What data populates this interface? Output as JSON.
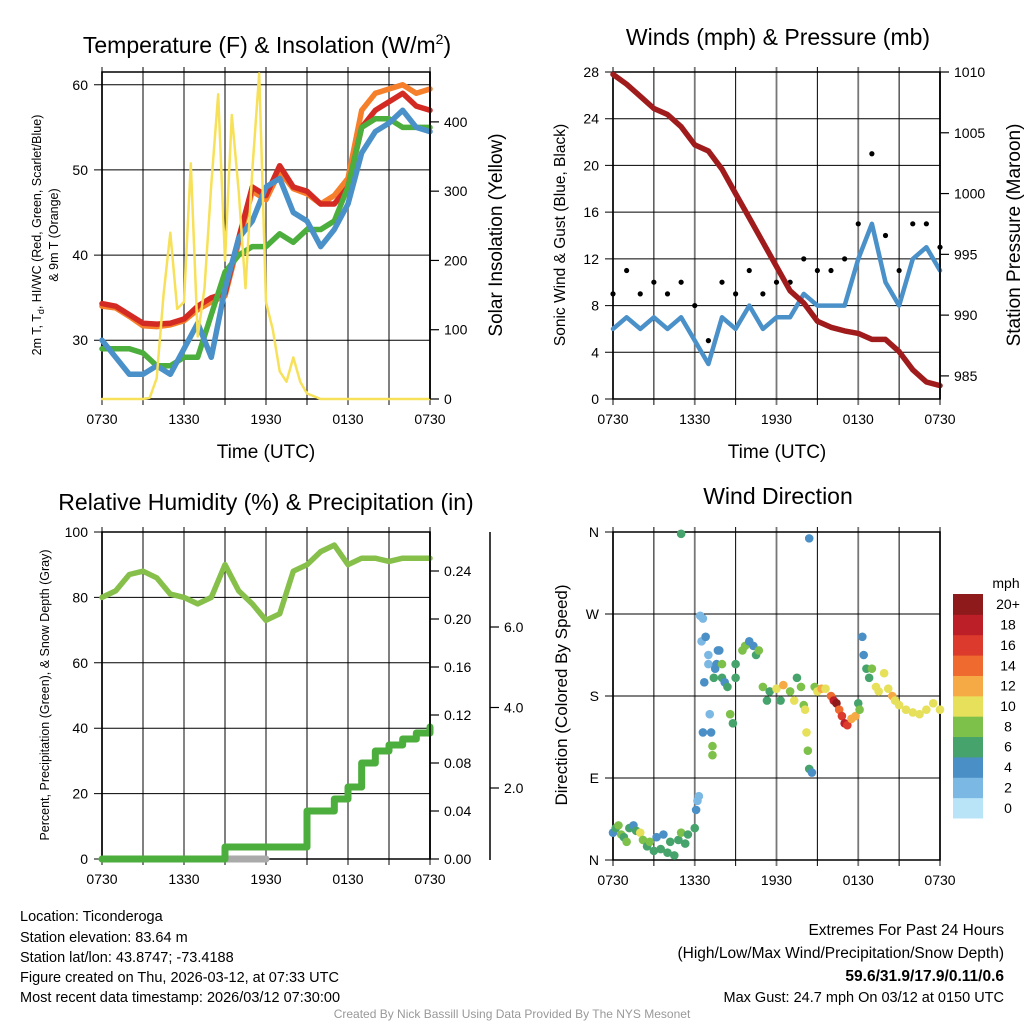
{
  "chart_data": [
    {
      "type": "line",
      "title_main": "Temperature (F) & Insolation (W/m",
      "title_sup": "2",
      "title_end": ")",
      "xlabel": "Time (UTC)",
      "ylabel_line1_a": "2m T, T",
      "ylabel_line1_sub": "d",
      "ylabel_line1_b": ", HI/WC (Red, Green, Scarlet/Blue)",
      "ylabel_line2": "& 9m T (Orange)",
      "y2label": "Solar Insolation (Yellow)",
      "xticks": [
        "0730",
        "1330",
        "1930",
        "0130",
        "0730"
      ],
      "yticks": [
        "30",
        "40",
        "50",
        "60"
      ],
      "y2ticks": [
        "0",
        "100",
        "200",
        "300",
        "400"
      ],
      "ylim": [
        23.1,
        61.5
      ],
      "y2lim": [
        0,
        472
      ],
      "x_hours": [
        0,
        1,
        2,
        3,
        4,
        5,
        6,
        7,
        8,
        9,
        10,
        11,
        12,
        13,
        14,
        15,
        16,
        17,
        18,
        19,
        20,
        21,
        22,
        23,
        24
      ],
      "series": [
        {
          "name": "9m T",
          "color": "#f57f2a",
          "values": [
            34,
            33.8,
            32.8,
            31.7,
            31.6,
            31.8,
            32.3,
            33.6,
            34.5,
            35.2,
            41.5,
            47.5,
            46.5,
            49.8,
            47.8,
            47.2,
            46,
            47,
            49,
            57,
            59,
            59.5,
            60,
            59,
            59.5
          ]
        },
        {
          "name": "2m T",
          "color": "#d42a24",
          "values": [
            34.3,
            34,
            33,
            32,
            31.9,
            32,
            32.5,
            34,
            35,
            35.5,
            42,
            48,
            47,
            50.5,
            48,
            47.5,
            46,
            46,
            48,
            55,
            57,
            58,
            59,
            57.5,
            57
          ]
        },
        {
          "name": "Td",
          "color": "#4cae3c",
          "values": [
            29,
            29,
            29,
            28.5,
            27,
            27,
            28,
            28,
            33,
            38,
            40,
            41,
            41,
            42.5,
            41.5,
            43,
            43,
            44,
            48,
            55,
            56,
            56,
            55,
            55,
            55
          ]
        },
        {
          "name": "HI/WC",
          "color": "#4a90c9",
          "values": [
            30,
            28,
            26,
            26,
            27,
            26,
            29,
            32,
            28,
            36,
            42,
            44,
            48,
            49,
            45,
            44,
            41,
            43,
            46,
            52,
            54.5,
            55.5,
            57,
            55,
            54.5
          ]
        }
      ],
      "insolation": {
        "name": "Solar Insolation",
        "color": "#f7e15a",
        "x_hours": [
          0,
          1,
          2,
          3,
          3.5,
          4,
          4.5,
          5,
          5.5,
          6,
          6.5,
          7,
          7.5,
          8,
          8.5,
          9,
          9.5,
          10,
          10.5,
          11,
          11.5,
          12,
          12.5,
          13,
          13.5,
          14,
          14.5,
          15,
          16,
          17,
          18,
          19,
          20,
          21,
          22,
          23,
          24
        ],
        "values": [
          0,
          0,
          0,
          0,
          2,
          30,
          150,
          240,
          130,
          140,
          340,
          90,
          160,
          310,
          440,
          200,
          410,
          300,
          160,
          330,
          470,
          140,
          100,
          40,
          25,
          60,
          25,
          8,
          0,
          0,
          0,
          0,
          0,
          0,
          0,
          0,
          0
        ]
      }
    },
    {
      "type": "line",
      "title": "Winds (mph) & Pressure (mb)",
      "xlabel": "Time (UTC)",
      "ylabel": "Sonic Wind & Gust (Blue, Black)",
      "y2label": "Station Pressure (Maroon)",
      "xticks": [
        "0730",
        "1330",
        "1930",
        "0130",
        "0730"
      ],
      "yticks": [
        "0",
        "4",
        "8",
        "12",
        "16",
        "20",
        "24",
        "28"
      ],
      "y2ticks": [
        "985",
        "990",
        "995",
        "1000",
        "1005",
        "1010"
      ],
      "ylim": [
        0,
        28
      ],
      "y2lim": [
        983.1,
        1010
      ],
      "x_hours": [
        0,
        1,
        2,
        3,
        4,
        5,
        6,
        7,
        8,
        9,
        10,
        11,
        12,
        13,
        14,
        15,
        16,
        17,
        18,
        19,
        20,
        21,
        22,
        23,
        24
      ],
      "series": [
        {
          "name": "Station Pressure",
          "color": "#a01c1c",
          "values": [
            1009.8,
            1009,
            1008,
            1007,
            1006.5,
            1005.5,
            1004,
            1003.5,
            1002,
            1000,
            998,
            996,
            994,
            992,
            991,
            989.5,
            989,
            988.7,
            988.5,
            988,
            988,
            987,
            985.5,
            984.5,
            984.2
          ]
        },
        {
          "name": "Sonic Wind",
          "color": "#4a90c9",
          "values": [
            6,
            7,
            6,
            7,
            6,
            7,
            5,
            3,
            7,
            6,
            8,
            6,
            7,
            7,
            9,
            8,
            8,
            8,
            12,
            15,
            10,
            8,
            12,
            13,
            11
          ]
        },
        {
          "name": "Gust",
          "color": "#000000",
          "values": [
            9,
            11,
            9,
            10,
            9,
            10,
            8,
            5,
            10,
            9,
            11,
            9,
            10,
            10,
            12,
            11,
            11,
            12,
            15,
            21,
            14,
            11,
            15,
            15,
            13
          ]
        }
      ]
    },
    {
      "type": "line",
      "title": "Relative Humidity (%) & Precipitation (in)",
      "ylabel": "Percent, Precipitation (Green), & Snow Depth (Gray)",
      "xticks": [
        "0730",
        "1330",
        "1930",
        "0130",
        "0730"
      ],
      "yticks": [
        "0",
        "20",
        "40",
        "60",
        "80",
        "100"
      ],
      "y2ticks": [
        "0.00",
        "0.04",
        "0.08",
        "0.12",
        "0.16",
        "0.20",
        "0.24"
      ],
      "y3ticks": [
        "2.0",
        "4.0",
        "6.0"
      ],
      "ylim": [
        0,
        100
      ],
      "y2lim": [
        0,
        0.2725
      ],
      "x_hours": [
        0,
        1,
        2,
        3,
        4,
        5,
        6,
        7,
        8,
        9,
        10,
        11,
        12,
        13,
        14,
        15,
        16,
        17,
        18,
        19,
        20,
        21,
        22,
        23,
        24
      ],
      "series": [
        {
          "name": "Relative Humidity",
          "color": "#86c04a",
          "values": [
            80,
            82,
            87,
            88,
            86,
            81,
            80,
            78,
            80,
            90,
            82,
            78,
            73,
            75,
            88,
            90,
            94,
            96,
            90,
            92,
            92,
            91,
            92,
            92,
            92
          ]
        },
        {
          "name": "Precipitation",
          "color": "#4cae3c",
          "values": [
            0,
            0,
            0,
            0,
            0,
            0,
            0,
            0,
            0,
            0.01,
            0.01,
            0.01,
            0.01,
            0.01,
            0.01,
            0.04,
            0.04,
            0.05,
            0.06,
            0.08,
            0.09,
            0.095,
            0.1,
            0.105,
            0.11
          ]
        },
        {
          "name": "Snow Depth",
          "color": "#aaaaaa",
          "x_hours": [
            8.5,
            9,
            9.5,
            10,
            10.5,
            11,
            11.5,
            12
          ],
          "values": [
            0,
            0,
            0,
            0,
            0,
            0,
            0,
            0
          ]
        }
      ]
    },
    {
      "type": "scatter",
      "title": "Wind Direction",
      "ylabel": "Direction (Colored By Speed)",
      "xticks": [
        "0730",
        "1330",
        "1930",
        "0130",
        "0730"
      ],
      "yticks": [
        "N",
        "E",
        "S",
        "W",
        "N"
      ],
      "ylim": [
        0,
        360
      ],
      "legend_title": "mph",
      "legend_labels": [
        "0",
        "2",
        "4",
        "6",
        "8",
        "10",
        "12",
        "14",
        "16",
        "18",
        "20+"
      ],
      "legend_colors": [
        "#b9e4f8",
        "#7bb8e3",
        "#4a8fc5",
        "#47a36c",
        "#7dc04a",
        "#e7e05b",
        "#f6aa46",
        "#ee6a2e",
        "#db3a2c",
        "#bc1f27",
        "#8f1a1c"
      ],
      "legend_placement": "right",
      "points": [
        [
          0,
          30,
          4
        ],
        [
          0.2,
          35,
          6
        ],
        [
          0.4,
          38,
          8
        ],
        [
          0.6,
          28,
          7
        ],
        [
          0.8,
          25,
          6
        ],
        [
          1,
          20,
          8
        ],
        [
          1.2,
          35,
          6
        ],
        [
          1.5,
          38,
          4
        ],
        [
          1.7,
          32,
          6
        ],
        [
          2,
          30,
          10
        ],
        [
          2.2,
          22,
          8
        ],
        [
          2.5,
          15,
          6
        ],
        [
          2.7,
          20,
          8
        ],
        [
          3,
          10,
          6
        ],
        [
          3.2,
          25,
          4
        ],
        [
          3.5,
          12,
          6
        ],
        [
          3.7,
          28,
          4
        ],
        [
          4,
          8,
          6
        ],
        [
          4.2,
          20,
          6
        ],
        [
          4.5,
          5,
          6
        ],
        [
          4.8,
          22,
          6
        ],
        [
          5,
          358,
          5
        ],
        [
          5,
          30,
          8
        ],
        [
          5.3,
          18,
          6
        ],
        [
          5.5,
          28,
          6
        ],
        [
          6,
          35,
          6
        ],
        [
          6.1,
          55,
          4
        ],
        [
          6.2,
          65,
          2
        ],
        [
          6.3,
          70,
          1
        ],
        [
          6.4,
          268,
          2
        ],
        [
          6.5,
          240,
          1
        ],
        [
          6.6,
          265,
          2
        ],
        [
          6.6,
          140,
          4
        ],
        [
          6.7,
          195,
          3
        ],
        [
          6.8,
          245,
          4
        ],
        [
          7,
          225,
          1
        ],
        [
          7.0,
          215,
          1
        ],
        [
          7.1,
          160,
          2
        ],
        [
          7.2,
          140,
          3
        ],
        [
          7.3,
          125,
          8
        ],
        [
          7.3,
          115,
          8
        ],
        [
          7.4,
          200,
          5
        ],
        [
          7.5,
          210,
          4
        ],
        [
          7.6,
          215,
          4
        ],
        [
          7.7,
          230,
          4
        ],
        [
          7.8,
          230,
          4
        ],
        [
          8,
          200,
          6
        ],
        [
          8,
          215,
          8
        ],
        [
          8.2,
          195,
          4
        ],
        [
          8.4,
          190,
          6
        ],
        [
          8.6,
          160,
          8
        ],
        [
          8.8,
          150,
          6
        ],
        [
          9,
          215,
          6
        ],
        [
          9,
          200,
          6
        ],
        [
          9.5,
          230,
          8
        ],
        [
          9.7,
          235,
          8
        ],
        [
          10,
          240,
          4
        ],
        [
          10.3,
          235,
          4
        ],
        [
          10.5,
          225,
          6
        ],
        [
          10.7,
          230,
          8
        ],
        [
          11,
          190,
          8
        ],
        [
          11.3,
          175,
          6
        ],
        [
          11.5,
          185,
          6
        ],
        [
          12,
          188,
          10
        ],
        [
          12.3,
          175,
          6
        ],
        [
          12.5,
          192,
          12
        ],
        [
          13,
          185,
          8
        ],
        [
          13.3,
          175,
          10
        ],
        [
          13.5,
          200,
          6
        ],
        [
          13.8,
          190,
          8
        ],
        [
          14,
          170,
          8
        ],
        [
          14.1,
          165,
          10
        ],
        [
          14.2,
          140,
          10
        ],
        [
          14.3,
          120,
          8
        ],
        [
          14.4,
          100,
          6
        ],
        [
          14.6,
          96,
          4
        ],
        [
          14.4,
          353,
          4
        ],
        [
          14.8,
          190,
          8
        ],
        [
          15,
          185,
          10
        ],
        [
          15.3,
          188,
          12
        ],
        [
          15.6,
          188,
          10
        ],
        [
          16,
          180,
          14
        ],
        [
          16.2,
          175,
          18
        ],
        [
          16.4,
          172,
          20
        ],
        [
          16.6,
          165,
          14
        ],
        [
          16.8,
          158,
          16
        ],
        [
          17,
          150,
          18
        ],
        [
          17.2,
          148,
          16
        ],
        [
          17.5,
          155,
          12
        ],
        [
          17.8,
          158,
          12
        ],
        [
          18,
          172,
          6
        ],
        [
          18.1,
          165,
          8
        ],
        [
          18.3,
          245,
          4
        ],
        [
          18.4,
          225,
          4
        ],
        [
          18.6,
          210,
          6
        ],
        [
          18.8,
          200,
          6
        ],
        [
          19,
          210,
          8
        ],
        [
          19.3,
          190,
          10
        ],
        [
          19.5,
          185,
          10
        ],
        [
          19.9,
          205,
          10
        ],
        [
          20.2,
          188,
          10
        ],
        [
          20.5,
          180,
          12
        ],
        [
          20.7,
          175,
          10
        ],
        [
          21,
          170,
          10
        ],
        [
          21.5,
          165,
          10
        ],
        [
          22,
          162,
          10
        ],
        [
          22.5,
          160,
          10
        ],
        [
          23,
          165,
          10
        ],
        [
          23.5,
          172,
          10
        ],
        [
          24,
          165,
          10
        ]
      ]
    }
  ],
  "info": {
    "location": "Location: Ticonderoga",
    "elevation": "Station elevation: 83.64 m",
    "latlon": "Station lat/lon: 43.8747; -73.4188",
    "created": "Figure created on Thu, 2026-03-12, at 07:33 UTC",
    "recent": "Most recent data timestamp: 2026/03/12 07:30:00"
  },
  "extremes": {
    "title": "Extremes For Past 24 Hours",
    "subtitle": "(High/Low/Max Wind/Precipitation/Snow Depth)",
    "values": "59.6/31.9/17.9/0.11/0.6",
    "values_color": "#c8202a",
    "max_gust": "Max Gust: 24.7 mph On 03/12 at 0150 UTC"
  },
  "credit": "Created By Nick Bassill Using Data Provided By The NYS Mesonet"
}
